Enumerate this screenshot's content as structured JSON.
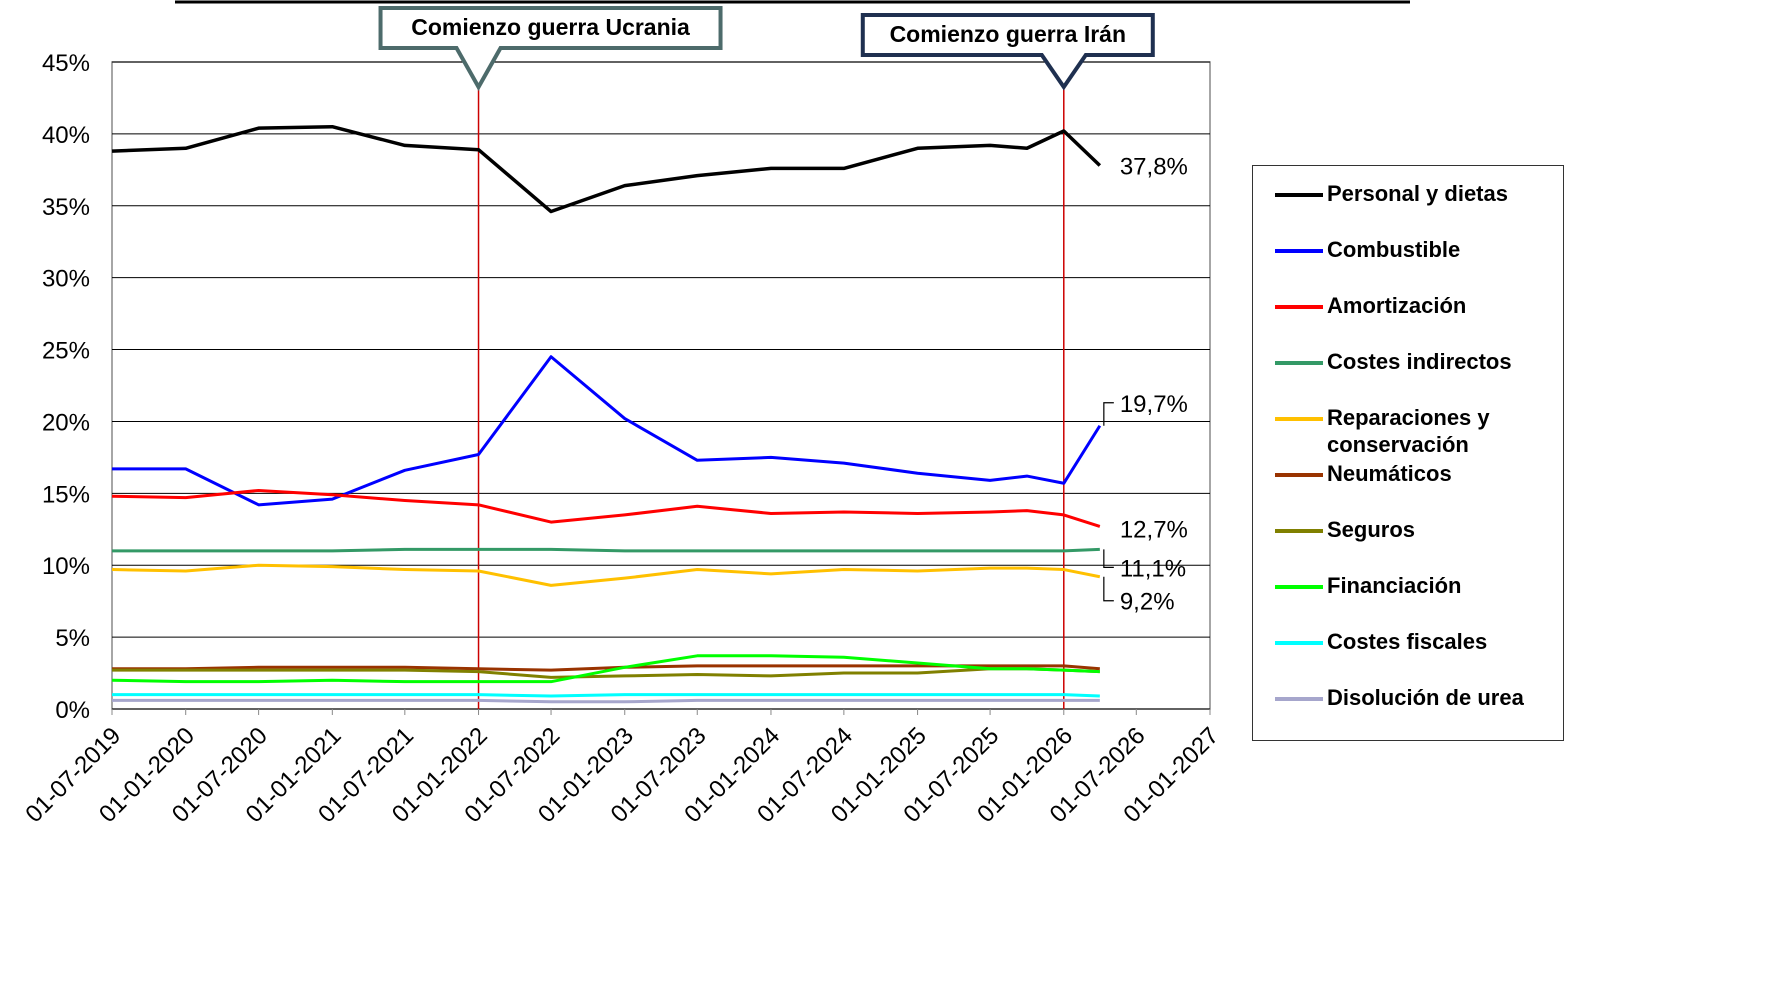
{
  "chart_data": {
    "type": "line",
    "x": [
      "01-07-2019",
      "01-01-2020",
      "01-07-2020",
      "01-01-2021",
      "01-07-2021",
      "01-01-2022",
      "01-07-2022",
      "01-01-2023",
      "01-07-2023",
      "01-01-2024",
      "01-07-2024",
      "01-01-2025",
      "01-07-2025",
      "01-10-2025",
      "01-01-2026",
      "01-04-2026"
    ],
    "xlim": [
      "01-07-2019",
      "01-01-2027"
    ],
    "xticks": [
      "01-07-2019",
      "01-01-2020",
      "01-07-2020",
      "01-01-2021",
      "01-07-2021",
      "01-01-2022",
      "01-07-2022",
      "01-01-2023",
      "01-07-2023",
      "01-01-2024",
      "01-07-2024",
      "01-01-2025",
      "01-07-2025",
      "01-01-2026",
      "01-07-2026",
      "01-01-2027"
    ],
    "ylim": [
      0,
      45
    ],
    "yticks": [
      {
        "value": 0,
        "label": "0%"
      },
      {
        "value": 5,
        "label": "5%"
      },
      {
        "value": 10,
        "label": "10%"
      },
      {
        "value": 15,
        "label": "15%"
      },
      {
        "value": 20,
        "label": "20%"
      },
      {
        "value": 25,
        "label": "25%"
      },
      {
        "value": 30,
        "label": "30%"
      },
      {
        "value": 35,
        "label": "35%"
      },
      {
        "value": 40,
        "label": "40%"
      },
      {
        "value": 45,
        "label": "45%"
      }
    ],
    "grid": true,
    "legend": "right",
    "annotations": [
      {
        "text": "Comienzo guerra Ucrania",
        "x": "01-01-2022"
      },
      {
        "text": "Comienzo guerra Irán",
        "x": "01-01-2026"
      }
    ],
    "series": [
      {
        "name": "Personal y dietas",
        "color": "#000000",
        "values": [
          38.8,
          39.0,
          40.4,
          40.5,
          39.2,
          38.9,
          34.6,
          36.4,
          37.1,
          37.6,
          37.6,
          39.0,
          39.2,
          39.0,
          40.2,
          37.8
        ],
        "value_labels": [
          null,
          null,
          null,
          null,
          null,
          null,
          null,
          null,
          null,
          null,
          null,
          null,
          null,
          null,
          null,
          "37,8%"
        ]
      },
      {
        "name": "Combustible",
        "color": "#0000ff",
        "values": [
          16.7,
          16.7,
          14.2,
          14.6,
          16.6,
          17.7,
          24.5,
          20.2,
          17.3,
          17.5,
          17.1,
          16.4,
          15.9,
          16.2,
          15.7,
          19.7
        ],
        "value_labels": [
          null,
          null,
          null,
          null,
          null,
          null,
          null,
          null,
          null,
          null,
          null,
          null,
          null,
          null,
          null,
          "19,7%"
        ]
      },
      {
        "name": "Amortización",
        "color": "#ff0000",
        "values": [
          14.8,
          14.7,
          15.2,
          14.9,
          14.5,
          14.2,
          13.0,
          13.5,
          14.1,
          13.6,
          13.7,
          13.6,
          13.7,
          13.8,
          13.5,
          12.7
        ],
        "value_labels": [
          null,
          null,
          null,
          null,
          null,
          null,
          null,
          null,
          null,
          null,
          null,
          null,
          null,
          null,
          null,
          "12,7%"
        ]
      },
      {
        "name": "Costes indirectos",
        "color": "#339966",
        "values": [
          11.0,
          11.0,
          11.0,
          11.0,
          11.1,
          11.1,
          11.1,
          11.0,
          11.0,
          11.0,
          11.0,
          11.0,
          11.0,
          11.0,
          11.0,
          11.1
        ],
        "value_labels": [
          null,
          null,
          null,
          null,
          null,
          null,
          null,
          null,
          null,
          null,
          null,
          null,
          null,
          null,
          null,
          "11,1%"
        ]
      },
      {
        "name": "Reparaciones y conservación",
        "color": "#ffc000",
        "values": [
          9.7,
          9.6,
          10.0,
          9.9,
          9.7,
          9.6,
          8.6,
          9.1,
          9.7,
          9.4,
          9.7,
          9.6,
          9.8,
          9.8,
          9.7,
          9.2
        ],
        "value_labels": [
          null,
          null,
          null,
          null,
          null,
          null,
          null,
          null,
          null,
          null,
          null,
          null,
          null,
          null,
          null,
          "9,2%"
        ]
      },
      {
        "name": "Neumáticos",
        "color": "#993300",
        "values": [
          2.8,
          2.8,
          2.9,
          2.9,
          2.9,
          2.8,
          2.7,
          2.9,
          3.0,
          3.0,
          3.0,
          3.0,
          3.0,
          3.0,
          3.0,
          2.8
        ]
      },
      {
        "name": "Seguros",
        "color": "#808000",
        "values": [
          2.7,
          2.7,
          2.7,
          2.7,
          2.7,
          2.6,
          2.2,
          2.3,
          2.4,
          2.3,
          2.5,
          2.5,
          2.8,
          2.8,
          2.7,
          2.6
        ]
      },
      {
        "name": "Financiación",
        "color": "#00ff00",
        "values": [
          2.0,
          1.9,
          1.9,
          2.0,
          1.9,
          1.9,
          1.9,
          2.9,
          3.7,
          3.7,
          3.6,
          3.2,
          2.8,
          2.8,
          2.7,
          2.6
        ]
      },
      {
        "name": "Costes fiscales",
        "color": "#00ffff",
        "values": [
          1.0,
          1.0,
          1.0,
          1.0,
          1.0,
          1.0,
          0.9,
          1.0,
          1.0,
          1.0,
          1.0,
          1.0,
          1.0,
          1.0,
          1.0,
          0.9
        ]
      },
      {
        "name": "Disolución de urea",
        "color": "#a6a6cc",
        "values": [
          0.6,
          0.6,
          0.6,
          0.6,
          0.6,
          0.6,
          0.5,
          0.5,
          0.6,
          0.6,
          0.6,
          0.6,
          0.6,
          0.6,
          0.6,
          0.6
        ]
      }
    ]
  }
}
